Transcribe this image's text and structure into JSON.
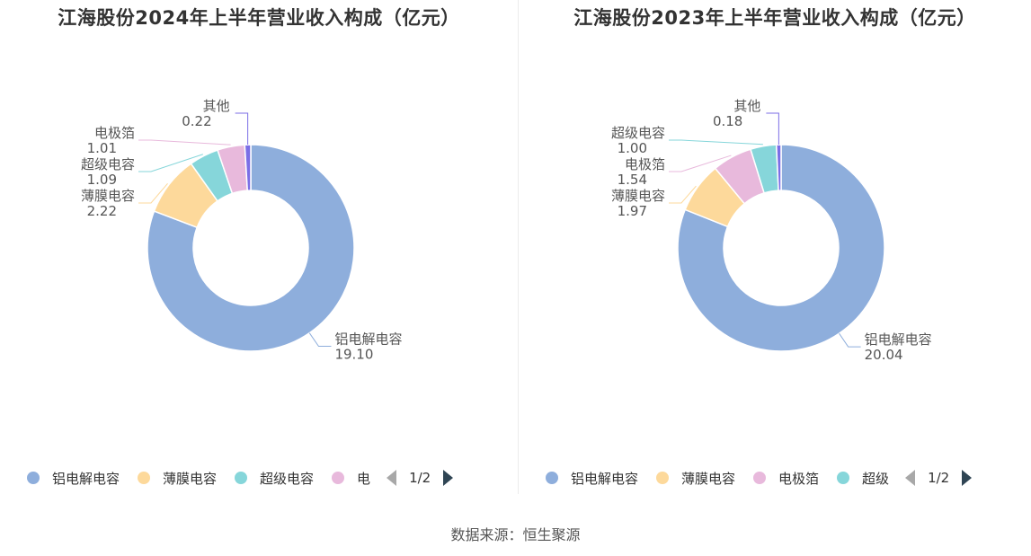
{
  "chart_data": [
    {
      "type": "pie",
      "title": "江海股份2024年上半年营业收入构成（亿元）",
      "categories": [
        "铝电解电容",
        "薄膜电容",
        "超级电容",
        "电极箔",
        "其他"
      ],
      "values": [
        19.1,
        2.22,
        1.09,
        1.01,
        0.22
      ],
      "value_labels": [
        "19.10",
        "2.22",
        "1.09",
        "1.01",
        "0.22"
      ],
      "colors": [
        "#8eaedc",
        "#fdd99b",
        "#86d6da",
        "#e8b9dc",
        "#7b6ee6"
      ],
      "legend": {
        "position": "bottom",
        "visible_items": [
          "铝电解电容",
          "薄膜电容",
          "超级电容",
          "电"
        ],
        "dot_colors": [
          "#8eaedc",
          "#fdd99b",
          "#86d6da",
          "#e8b9dc"
        ],
        "page": "1/2"
      }
    },
    {
      "type": "pie",
      "title": "江海股份2023年上半年营业收入构成（亿元）",
      "categories": [
        "铝电解电容",
        "薄膜电容",
        "电极箔",
        "超级电容",
        "其他"
      ],
      "values": [
        20.04,
        1.97,
        1.54,
        1.0,
        0.18
      ],
      "value_labels": [
        "20.04",
        "1.97",
        "1.54",
        "1.00",
        "0.18"
      ],
      "colors": [
        "#8eaedc",
        "#fdd99b",
        "#e8b9dc",
        "#86d6da",
        "#7b6ee6"
      ],
      "legend": {
        "position": "bottom",
        "visible_items": [
          "铝电解电容",
          "薄膜电容",
          "电极箔",
          "超级"
        ],
        "dot_colors": [
          "#8eaedc",
          "#fdd99b",
          "#e8b9dc",
          "#86d6da"
        ],
        "page": "1/2"
      }
    }
  ],
  "source": "数据来源：恒生聚源"
}
